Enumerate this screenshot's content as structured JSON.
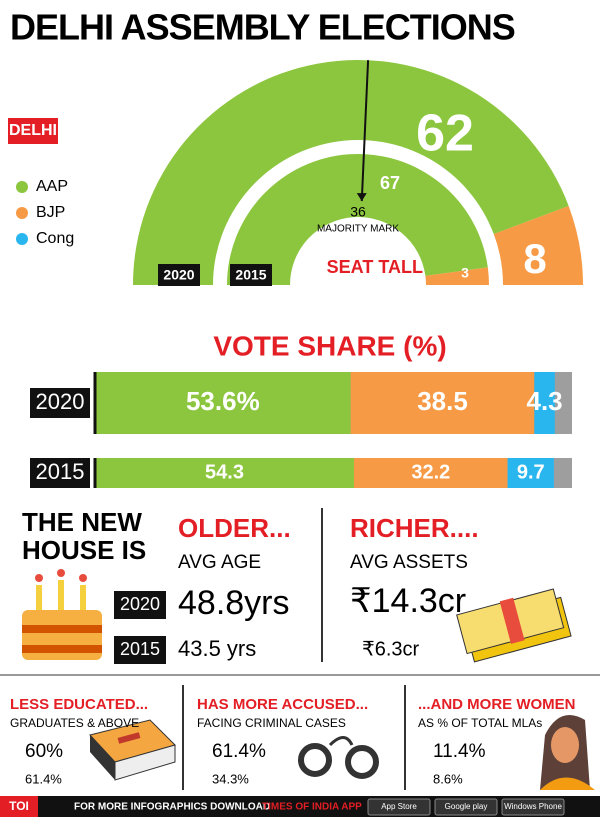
{
  "header": {
    "title": "DELHI ASSEMBLY ELECTIONS"
  },
  "seat_tally": {
    "region": "DELHI",
    "label": "SEAT TALLY",
    "legend": [
      {
        "name": "AAP",
        "color": "#8cc63f"
      },
      {
        "name": "BJP",
        "color": "#f79a45"
      },
      {
        "name": "Cong",
        "color": "#29b6ef"
      }
    ],
    "majority": {
      "value": 36,
      "label": "MAJORITY MARK"
    },
    "rings": [
      {
        "year": "2020",
        "values": [
          62,
          8
        ]
      },
      {
        "year": "2015",
        "values": [
          67,
          3
        ]
      }
    ]
  },
  "vote_share": {
    "title": "VOTE SHARE (%)",
    "xlim": [
      0,
      100
    ],
    "other_color": "#9e9e9e",
    "rows": [
      {
        "year": "2020",
        "values": [
          53.6,
          38.5,
          4.3
        ],
        "value_labels": [
          "53.6%",
          "38.5",
          "4.3"
        ]
      },
      {
        "year": "2015",
        "values": [
          54.3,
          32.2,
          9.7
        ]
      }
    ]
  },
  "new_house": {
    "heading": "THE NEW HOUSE IS",
    "older": {
      "title": "OLDER...",
      "subtitle": "AVG AGE",
      "rows": [
        {
          "year": "2020",
          "value": "48.8yrs"
        },
        {
          "year": "2015",
          "value": "43.5 yrs"
        }
      ]
    },
    "richer": {
      "title": "RICHER....",
      "subtitle": "AVG ASSETS",
      "values": [
        "₹14.3cr",
        "₹6.3cr"
      ]
    }
  },
  "bottom": [
    {
      "title": "LESS EDUCATED...",
      "subtitle": "GRADUATES & ABOVE",
      "values": [
        "60%",
        "61.4%"
      ]
    },
    {
      "title": "HAS MORE ACCUSED...",
      "subtitle": "FACING CRIMINAL CASES",
      "values": [
        "61.4%",
        "34.3%"
      ]
    },
    {
      "title": "...AND MORE WOMEN",
      "subtitle": "AS % OF TOTAL MLAs",
      "values": [
        "11.4%",
        "8.6%"
      ]
    }
  ],
  "footer": {
    "brand": "TOI",
    "text": "FOR MORE INFOGRAPHICS DOWNLOAD",
    "app": "TIMES OF INDIA APP",
    "stores": [
      "App Store",
      "Google play",
      "Windows Phone"
    ]
  }
}
